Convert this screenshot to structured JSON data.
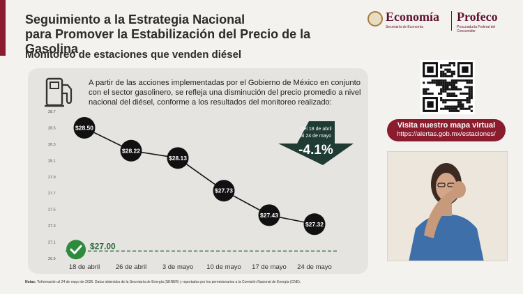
{
  "header": {
    "title_line1": "Seguimiento a la Estrategia Nacional",
    "title_line2": "para Promover la Estabilización del Precio de la Gasolina",
    "logo_economia": "Economía",
    "logo_economia_sub": "Secretaría de Economía",
    "logo_profeco": "Profeco",
    "logo_profeco_sub": "Procuraduría Federal del Consumidor"
  },
  "subtitle": "Monitoreo de estaciones que venden diésel",
  "intro": "A partir de las acciones implementadas por el Gobierno de México en conjunto con el sector gasolinero, se refleja una disminución del precio promedio a nivel nacional del diésel, conforme a los resultados del monitoreo realizado:",
  "icons": {
    "pump": "fuel-pump-icon",
    "check": "check-icon",
    "arrow": "down-arrow-icon",
    "qr": "qr-code-icon"
  },
  "colors": {
    "brand": "#8a1c2d",
    "arrow": "#1f3b34",
    "line": "#111111",
    "target": "#2a6a3a",
    "check": "#2e8b3e"
  },
  "chart_data": {
    "type": "line",
    "categories": [
      "18 de abril",
      "26 de abril",
      "3 de mayo",
      "10 de mayo",
      "17 de mayo",
      "24 de mayo"
    ],
    "values": [
      28.5,
      28.22,
      28.13,
      27.73,
      27.43,
      27.32
    ],
    "data_labels": [
      "$28.50",
      "$28.22",
      "$28.13",
      "$27.73",
      "$27.43",
      "$27.32"
    ],
    "y_ticks": [
      "26.9",
      "27.1",
      "27.3",
      "27.5",
      "27.7",
      "27.9",
      "28.1",
      "28.3",
      "28.5",
      "28.7"
    ],
    "ylim": [
      26.9,
      28.7
    ],
    "target": {
      "value": 27.0,
      "label": "$27.00"
    },
    "callout": {
      "period": "Del 18 de abril al 24 de mayo",
      "change": "-4.1%"
    },
    "grid": false
  },
  "notes": {
    "label": "Notas:",
    "text": "*Información al 24 de mayo de 2026. Datos obtenidos de la Secretaría de Energía (SENER) y reportados por los permisionarios a la Comisión Nacional de Energía (CNE)."
  },
  "cta": {
    "title": "Visita nuestro mapa virtual",
    "url": "https://alertas.gob.mx/estaciones/"
  }
}
